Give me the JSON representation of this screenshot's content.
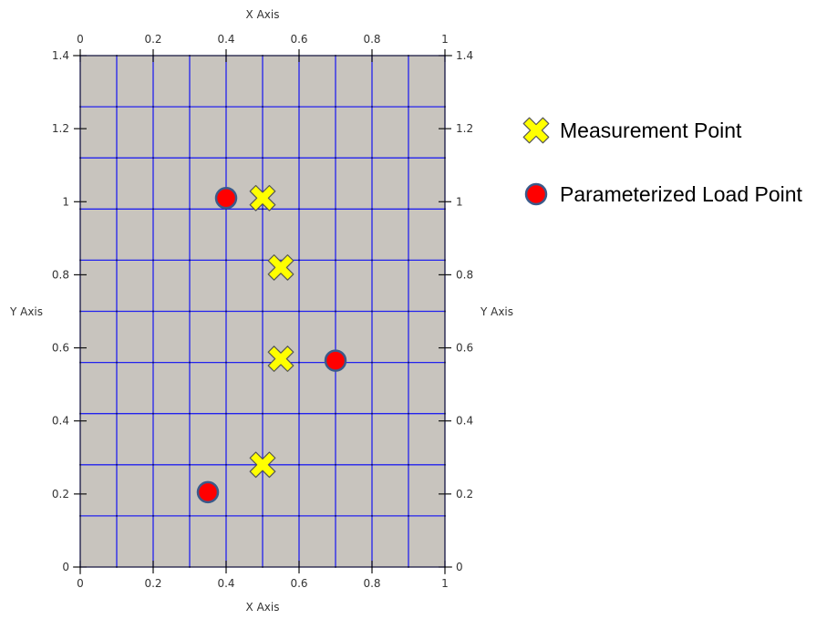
{
  "chart_data": {
    "type": "scatter",
    "title": "",
    "xlabel": "X Axis",
    "ylabel": "Y Axis",
    "xlim": [
      0,
      1
    ],
    "ylim": [
      0,
      1.4
    ],
    "x_ticks": [
      0,
      0.2,
      0.4,
      0.6,
      0.8,
      1
    ],
    "y_ticks": [
      0,
      0.2,
      0.4,
      0.6,
      0.8,
      1,
      1.2,
      1.4
    ],
    "x_tick_labels": [
      "0",
      "0.2",
      "0.4",
      "0.6",
      "0.8",
      "1"
    ],
    "y_tick_labels": [
      "0",
      "0.2",
      "0.4",
      "0.6",
      "0.8",
      "1",
      "1.2",
      "1.4"
    ],
    "mesh": {
      "x_divisions": 10,
      "y_divisions": 10,
      "x_lines": [
        0,
        0.1,
        0.2,
        0.3,
        0.4,
        0.5,
        0.6,
        0.7,
        0.8,
        0.9,
        1.0
      ],
      "y_lines": [
        0,
        0.14,
        0.28,
        0.42,
        0.56,
        0.7,
        0.84,
        0.98,
        1.12,
        1.26,
        1.4
      ]
    },
    "plot_background_color": "#c8c4be",
    "mesh_color": "#2222ee",
    "grid": true,
    "legend_position": "right",
    "series": [
      {
        "name": "Measurement Point",
        "marker": "x-cross",
        "color": "#ffff00",
        "points": [
          {
            "x": 0.5,
            "y": 1.01
          },
          {
            "x": 0.55,
            "y": 0.82
          },
          {
            "x": 0.55,
            "y": 0.57
          },
          {
            "x": 0.5,
            "y": 0.28
          }
        ]
      },
      {
        "name": "Parameterized Load Point",
        "marker": "circle",
        "color": "#ff0000",
        "points": [
          {
            "x": 0.4,
            "y": 1.01
          },
          {
            "x": 0.7,
            "y": 0.565
          },
          {
            "x": 0.35,
            "y": 0.205
          }
        ]
      }
    ]
  }
}
